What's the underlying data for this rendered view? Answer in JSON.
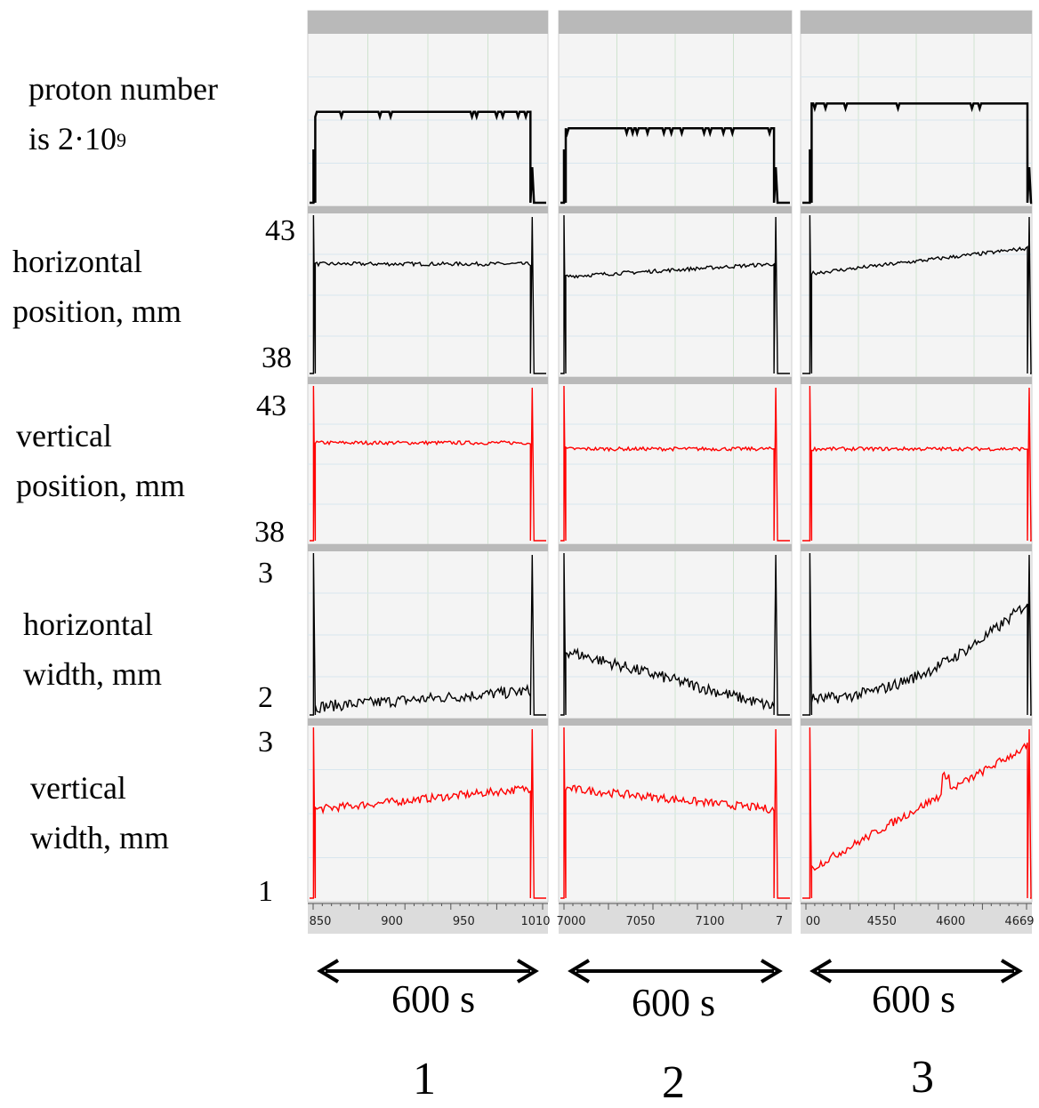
{
  "chart_data": {
    "type": "line",
    "row_labels": [
      {
        "line1": "proton number",
        "line2_text": "is 2·10",
        "line2_sup": "9"
      },
      {
        "line1": "horizontal",
        "line2": "position, mm"
      },
      {
        "line1": "vertical",
        "line2": "position, mm"
      },
      {
        "line1": "horizontal",
        "line2": "width, mm"
      },
      {
        "line1": "vertical",
        "line2": "width, mm"
      }
    ],
    "y_ticks": {
      "horizontal_position": [
        "43",
        "38"
      ],
      "vertical_position": [
        "43",
        "38"
      ],
      "horizontal_width": [
        "3",
        "2"
      ],
      "vertical_width": [
        "3",
        "1"
      ]
    },
    "ylim": {
      "horizontal_position": [
        38,
        43
      ],
      "vertical_position": [
        38,
        43
      ],
      "horizontal_width": [
        2,
        3
      ],
      "vertical_width": [
        1,
        3
      ]
    },
    "columns": [
      {
        "label": "1",
        "duration": "600 s",
        "x_ticks": [
          "850",
          "900",
          "950",
          "1010"
        ],
        "xlim": [
          846,
          1011
        ]
      },
      {
        "label": "2",
        "duration": "600 s",
        "x_ticks": [
          "7000",
          "7050",
          "7100",
          "7"
        ],
        "xlim": [
          6961,
          7134
        ]
      },
      {
        "label": "3",
        "duration": "600 s",
        "x_ticks": [
          "00",
          "4550",
          "4600",
          "4669"
        ],
        "xlim": [
          4498,
          4670
        ]
      }
    ],
    "series": [
      {
        "name": "proton number",
        "color": "#000000",
        "columns": [
          {
            "flat": 0.55,
            "on": [
              850,
              1000
            ]
          },
          {
            "flat": 0.45,
            "on": [
              6965,
              7122
            ]
          },
          {
            "flat": 0.6,
            "on": [
              4505,
              4668
            ]
          }
        ]
      },
      {
        "name": "horizontal position",
        "color": "#000000",
        "columns": [
          {
            "start": 41.5,
            "end": 41.5,
            "on": [
              850,
              1000
            ]
          },
          {
            "start": 41.1,
            "end": 41.5,
            "on": [
              6965,
              7122
            ]
          },
          {
            "start": 41.2,
            "end": 42.0,
            "on": [
              4505,
              4668
            ]
          }
        ]
      },
      {
        "name": "vertical position",
        "color": "#ff0000",
        "columns": [
          {
            "start": 41.2,
            "end": 41.2,
            "on": [
              850,
              1000
            ]
          },
          {
            "start": 41.0,
            "end": 41.0,
            "on": [
              6965,
              7122
            ]
          },
          {
            "start": 41.0,
            "end": 41.0,
            "on": [
              4505,
              4668
            ]
          }
        ]
      },
      {
        "name": "horizontal width",
        "color": "#000000",
        "columns": [
          {
            "start": 2.05,
            "end": 2.15,
            "on": [
              850,
              1000
            ]
          },
          {
            "start": 2.4,
            "end": 2.05,
            "on": [
              6965,
              7122
            ]
          },
          {
            "start": 2.1,
            "end": 2.7,
            "on": [
              4505,
              4668
            ]
          }
        ]
      },
      {
        "name": "vertical width",
        "color": "#ff0000",
        "columns": [
          {
            "start": 2.05,
            "end": 2.3,
            "on": [
              850,
              1000
            ]
          },
          {
            "start": 2.3,
            "end": 2.05,
            "on": [
              6965,
              7122
            ]
          },
          {
            "start": 1.35,
            "end": 2.8,
            "on": [
              4505,
              4668
            ]
          }
        ]
      }
    ]
  }
}
